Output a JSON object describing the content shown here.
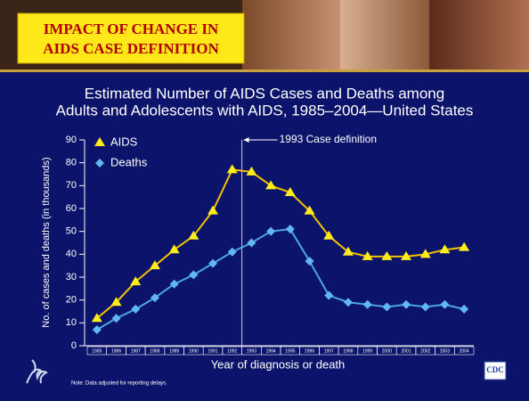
{
  "header": {
    "banner": [
      "IMPACT OF CHANGE IN",
      "AIDS CASE DEFINITION"
    ]
  },
  "chart_data": {
    "type": "line",
    "title": [
      "Estimated Number of AIDS Cases and Deaths among",
      "Adults and Adolescents with AIDS, 1985–2004—United States"
    ],
    "y_label": "No. of cases and deaths (in thousands)",
    "x_label": "Year of diagnosis or death",
    "annotation": "1993 Case definition",
    "categories": [
      "1985",
      "1986",
      "1987",
      "1988",
      "1989",
      "1990",
      "1991",
      "1992",
      "1993",
      "1994",
      "1995",
      "1996",
      "1997",
      "1998",
      "1999",
      "2000",
      "2001",
      "2002",
      "2003",
      "2004"
    ],
    "series": [
      {
        "name": "AIDS",
        "color": "#f2c200",
        "marker": "triangle",
        "marker_color": "#ffec1a",
        "values": [
          12,
          19,
          28,
          35,
          42,
          48,
          59,
          77,
          76,
          70,
          67,
          59,
          48,
          41,
          39,
          39,
          39,
          40,
          42,
          43
        ]
      },
      {
        "name": "Deaths",
        "color": "#4aa6e0",
        "marker": "diamond",
        "marker_color": "#62b8ee",
        "values": [
          7,
          12,
          16,
          21,
          27,
          31,
          36,
          41,
          45,
          50,
          51,
          37,
          22,
          19,
          18,
          17,
          18,
          17,
          18,
          16
        ]
      }
    ],
    "ylim": [
      0,
      90
    ],
    "yticks": [
      0,
      10,
      20,
      30,
      40,
      50,
      60,
      70,
      80,
      90
    ],
    "grid": false,
    "legend": "upper left"
  },
  "footer": {
    "note": "Note: Data adjusted for reporting delays.",
    "logo": "CDC"
  }
}
